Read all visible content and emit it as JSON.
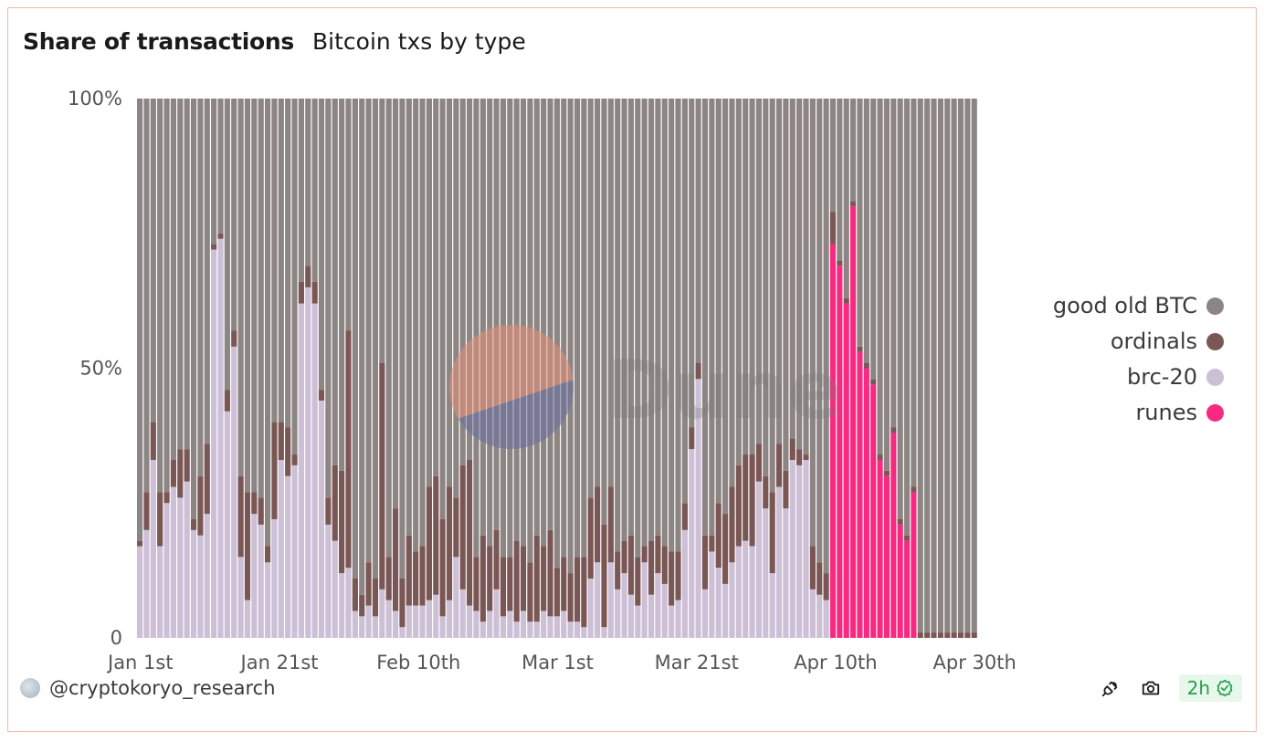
{
  "header": {
    "title": "Share of transactions",
    "subtitle": "Bitcoin txs by type"
  },
  "watermark": {
    "text": "Dune"
  },
  "footer": {
    "author": "@cryptokoryo_research",
    "refresh": "2h"
  },
  "icons": {
    "avatar": "avatar-icon",
    "embed": "plug-icon",
    "screenshot": "camera-icon",
    "verified": "check-badge-icon"
  },
  "colors": {
    "btc": "#8c8583",
    "ordinals": "#7a5654",
    "brc20": "#cdbfd6",
    "runes": "#f72981",
    "frame": "#efb7a6"
  },
  "chart_data": {
    "type": "bar",
    "stacked": true,
    "normalized": true,
    "x_start": "2024-01-01",
    "x_end": "2024-05-01",
    "x_ticks": [
      "Jan 1st",
      "Jan 21st",
      "Feb 10th",
      "Mar 1st",
      "Mar 21st",
      "Apr 10th",
      "Apr 30th"
    ],
    "y_ticks": [
      "100%",
      "50%",
      "0"
    ],
    "ylim": [
      0,
      100
    ],
    "legend_position": "right",
    "series": [
      {
        "name": "good old BTC",
        "color": "#8c8583"
      },
      {
        "name": "ordinals",
        "color": "#7a5654"
      },
      {
        "name": "brc-20",
        "color": "#cdbfd6"
      },
      {
        "name": "runes",
        "color": "#f72981"
      }
    ],
    "brc20": [
      17,
      20,
      33,
      17,
      25,
      28,
      26,
      29,
      20,
      19,
      23,
      72,
      74,
      42,
      54,
      15,
      7,
      23,
      21,
      14,
      22,
      33,
      30,
      32,
      62,
      65,
      62,
      44,
      21,
      18,
      12,
      13,
      5,
      4,
      6,
      4,
      9,
      7,
      5,
      2,
      6,
      6,
      6,
      7,
      8,
      4,
      7,
      15,
      9,
      6,
      5,
      3,
      5,
      9,
      4,
      5,
      3,
      5,
      3,
      3,
      5,
      4,
      4,
      5,
      3,
      3,
      2,
      11,
      14,
      2,
      14,
      9,
      12,
      8,
      6,
      14,
      8,
      12,
      10,
      6,
      7,
      20,
      35,
      48,
      9,
      16,
      13,
      10,
      14,
      17,
      18,
      17,
      29,
      24,
      12,
      28,
      24,
      33,
      32,
      33,
      9,
      8,
      7,
      0,
      0,
      0,
      0,
      0,
      0,
      0,
      0,
      0,
      0,
      0,
      0,
      0,
      0,
      0,
      0,
      0,
      0,
      0,
      0,
      0,
      0
    ],
    "ordinals": [
      1,
      7,
      7,
      10,
      2,
      5,
      9,
      6,
      2,
      11,
      13,
      1,
      1,
      4,
      3,
      15,
      20,
      4,
      5,
      3,
      18,
      7,
      9,
      2,
      4,
      4,
      4,
      2,
      5,
      14,
      19,
      44,
      6,
      4,
      8,
      7,
      42,
      8,
      19,
      9,
      13,
      10,
      11,
      21,
      22,
      18,
      21,
      11,
      23,
      27,
      10,
      16,
      12,
      11,
      11,
      10,
      15,
      12,
      11,
      16,
      12,
      16,
      9,
      10,
      9,
      12,
      13,
      15,
      14,
      19,
      14,
      7,
      6,
      11,
      9,
      3,
      10,
      7,
      7,
      10,
      9,
      5,
      4,
      3,
      10,
      3,
      12,
      13,
      14,
      15,
      16,
      17,
      7,
      6,
      15,
      8,
      7,
      4,
      3,
      1,
      8,
      6,
      5,
      6,
      1,
      1,
      1,
      1,
      1,
      1,
      1,
      1,
      1,
      1,
      1,
      1,
      1,
      1,
      1,
      1,
      1,
      1,
      1,
      1,
      1
    ],
    "runes": [
      0,
      0,
      0,
      0,
      0,
      0,
      0,
      0,
      0,
      0,
      0,
      0,
      0,
      0,
      0,
      0,
      0,
      0,
      0,
      0,
      0,
      0,
      0,
      0,
      0,
      0,
      0,
      0,
      0,
      0,
      0,
      0,
      0,
      0,
      0,
      0,
      0,
      0,
      0,
      0,
      0,
      0,
      0,
      0,
      0,
      0,
      0,
      0,
      0,
      0,
      0,
      0,
      0,
      0,
      0,
      0,
      0,
      0,
      0,
      0,
      0,
      0,
      0,
      0,
      0,
      0,
      0,
      0,
      0,
      0,
      0,
      0,
      0,
      0,
      0,
      0,
      0,
      0,
      0,
      0,
      0,
      0,
      0,
      0,
      0,
      0,
      0,
      0,
      0,
      0,
      0,
      0,
      0,
      0,
      0,
      0,
      0,
      0,
      0,
      0,
      0,
      0,
      0,
      73,
      69,
      62,
      80,
      53,
      50,
      47,
      33,
      30,
      38,
      21,
      18,
      27,
      0,
      0,
      0,
      0,
      0,
      0,
      0,
      0,
      0,
      0,
      0
    ]
  }
}
